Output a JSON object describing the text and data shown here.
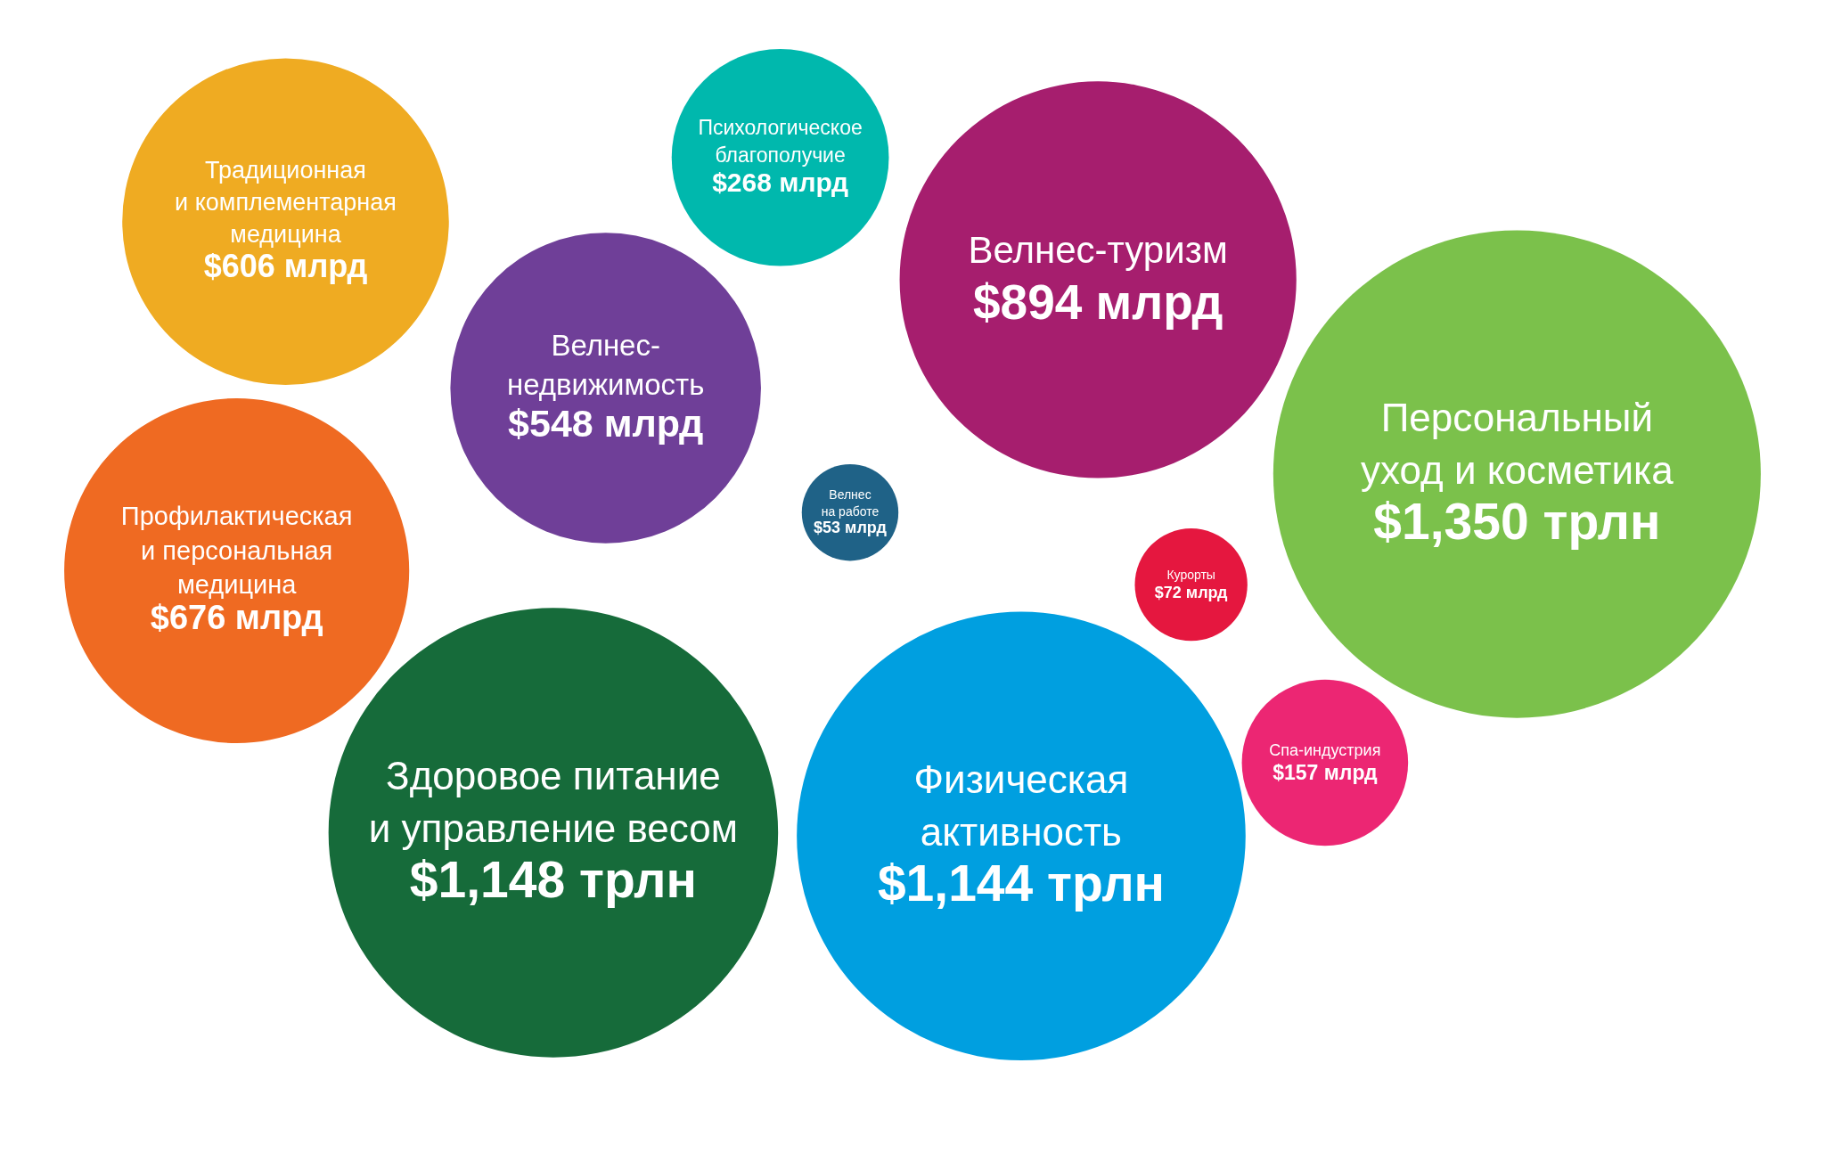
{
  "chart_data": {
    "type": "other",
    "categories": [
      "Традиционная\nи комплементарная\nмедицина",
      "Психологическое\nблагополучие",
      "Велнес-туризм",
      "Велнес-\nнедвижимость",
      "Персональный\nуход и косметика",
      "Профилактическая\nи персональная\nмедицина",
      "Велнес\nна работе",
      "Курорты",
      "Спа-индустрия",
      "Здоровое питание\nи управление весом",
      "Физическая\nактивность"
    ],
    "values": [
      606,
      268,
      894,
      548,
      1350,
      676,
      53,
      72,
      157,
      1148,
      1144
    ],
    "value_labels": [
      "$606 млрд",
      "$268 млрд",
      "$894 млрд",
      "$548 млрд",
      "$1,350 трлн",
      "$676 млрд",
      "$53 млрд",
      "$72 млрд",
      "$157 млрд",
      "$1,148 трлн",
      "$1,144 трлн"
    ],
    "colors": [
      "#efab22",
      "#00b8ad",
      "#a61e6e",
      "#6f3f98",
      "#7bc14b",
      "#ef6a22",
      "#1f6287",
      "#e5173f",
      "#ec2673",
      "#166b3a",
      "#009fe0"
    ]
  }
}
